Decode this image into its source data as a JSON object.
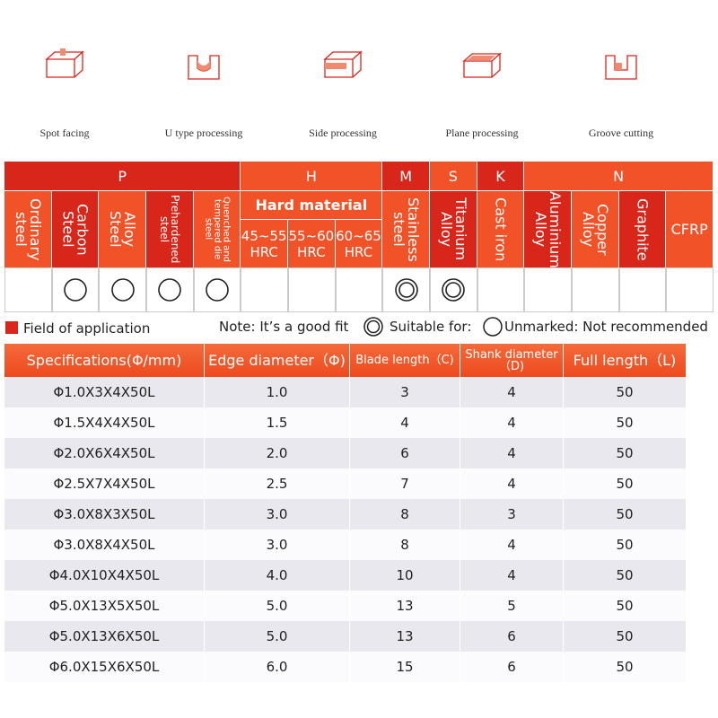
{
  "processes": [
    {
      "label": "Spot facing"
    },
    {
      "label": "U type processing"
    },
    {
      "label": "Side processing"
    },
    {
      "label": "Plane processing"
    },
    {
      "label": "Groove cutting"
    }
  ],
  "materials": {
    "groups": [
      {
        "label": "P",
        "columns": [
          {
            "label": "Ordinary steel",
            "rating": null
          },
          {
            "label": "Carbon Steel",
            "rating": "suitable"
          },
          {
            "label": "Alloy Steel",
            "rating": "suitable"
          },
          {
            "label": "Prehardened steel",
            "rating": "suitable"
          },
          {
            "label": "Quenched and tempered die steel",
            "rating": "suitable"
          }
        ]
      },
      {
        "label": "H",
        "subtitle": "Hard material",
        "columns": [
          {
            "label": "45~55 HRC",
            "rating": null
          },
          {
            "label": "55~60 HRC",
            "rating": null
          },
          {
            "label": "60~65 HRC",
            "rating": null
          }
        ]
      },
      {
        "label": "M",
        "columns": [
          {
            "label": "Stainless steel",
            "rating": "good"
          }
        ]
      },
      {
        "label": "S",
        "columns": [
          {
            "label": "Titanium Alloy",
            "rating": "good"
          }
        ]
      },
      {
        "label": "K",
        "columns": [
          {
            "label": "Cast iron",
            "rating": null
          }
        ]
      },
      {
        "label": "N",
        "columns": [
          {
            "label": "Aluminium Alloy",
            "rating": null
          },
          {
            "label": "Copper Alloy",
            "rating": null
          },
          {
            "label": "Graphite",
            "rating": null
          },
          {
            "label": "CFRP",
            "rating": null
          }
        ]
      }
    ]
  },
  "legend": {
    "field": "Field of application",
    "good": "Note: It’s a good fit",
    "suitable": "Suitable for:",
    "unmarked": "Unmarked: Not recommended"
  },
  "table": {
    "headers": [
      "Specifications(Φ/mm)",
      "Edge diameter（Φ)",
      "Blade length（C)",
      "Shank diameter（D)",
      "Full length（L)"
    ],
    "rows": [
      [
        "Φ1.0X3X4X50L",
        "1.0",
        "3",
        "4",
        "50"
      ],
      [
        "Φ1.5X4X4X50L",
        "1.5",
        "4",
        "4",
        "50"
      ],
      [
        "Φ2.0X6X4X50L",
        "2.0",
        "6",
        "4",
        "50"
      ],
      [
        "Φ2.5X7X4X50L",
        "2.5",
        "7",
        "4",
        "50"
      ],
      [
        "Φ3.0X8X3X50L",
        "3.0",
        "8",
        "3",
        "50"
      ],
      [
        "Φ3.0X8X4X50L",
        "3.0",
        "8",
        "4",
        "50"
      ],
      [
        "Φ4.0X10X4X50L",
        "4.0",
        "10",
        "4",
        "50"
      ],
      [
        "Φ5.0X13X5X50L",
        "5.0",
        "13",
        "5",
        "50"
      ],
      [
        "Φ5.0X13X6X50L",
        "5.0",
        "13",
        "6",
        "50"
      ],
      [
        "Φ6.0X15X6X50L",
        "6.0",
        "15",
        "6",
        "50"
      ]
    ]
  }
}
